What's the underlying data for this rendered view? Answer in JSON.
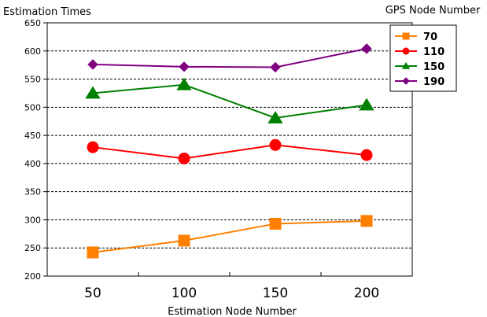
{
  "chart_data": {
    "type": "line",
    "ylabel": "Estimation Times",
    "xlabel": "Estimation Node Number",
    "legend_title": "GPS Node Number",
    "legend_position": "top-right",
    "grid": "horizontal-dashed",
    "x": [
      50,
      100,
      150,
      200
    ],
    "x_ticks": [
      "50",
      "100",
      "150",
      "200"
    ],
    "ylim": [
      200,
      650
    ],
    "y_ticks": [
      200,
      250,
      300,
      350,
      400,
      450,
      500,
      550,
      600,
      650
    ],
    "series": [
      {
        "name": "70",
        "color": "#ff7f00",
        "marker": "square",
        "values": [
          242,
          263,
          293,
          298
        ]
      },
      {
        "name": "110",
        "color": "#ff0000",
        "marker": "circle",
        "values": [
          429,
          409,
          433,
          415
        ]
      },
      {
        "name": "150",
        "color": "#008000",
        "marker": "triangle",
        "values": [
          525,
          540,
          481,
          504
        ]
      },
      {
        "name": "190",
        "color": "#800080",
        "marker": "diamond",
        "values": [
          576,
          572,
          571,
          604
        ]
      }
    ]
  }
}
